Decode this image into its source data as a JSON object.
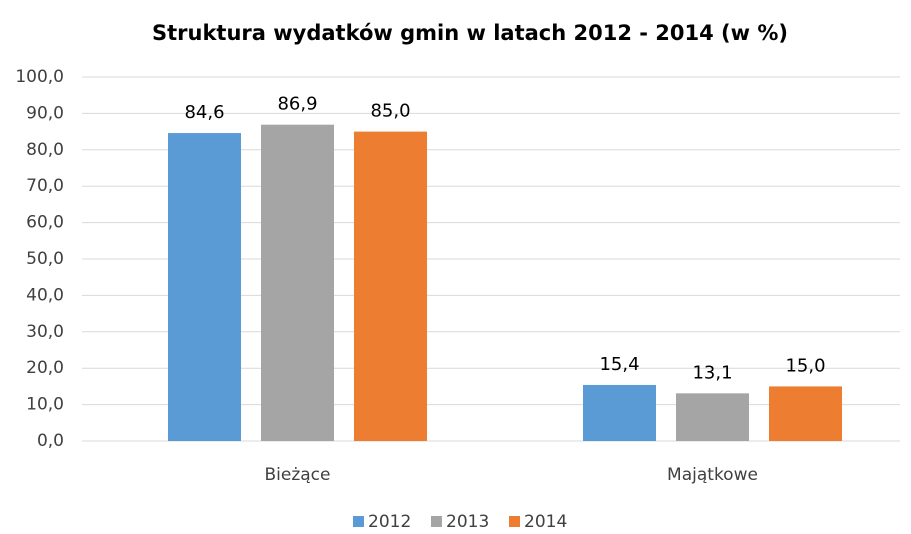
{
  "chart_data": {
    "type": "bar",
    "title": "Struktura wydatków gmin w latach 2012 - 2014 (w %)",
    "categories": [
      "Bieżące",
      "Majątkowe"
    ],
    "series": [
      {
        "name": "2012",
        "color": "#5b9bd5",
        "values": [
          84.6,
          15.4
        ],
        "value_labels": [
          "84,6",
          "15,4"
        ]
      },
      {
        "name": "2013",
        "color": "#a5a5a5",
        "values": [
          86.9,
          13.1
        ],
        "value_labels": [
          "86,9",
          "13,1"
        ]
      },
      {
        "name": "2014",
        "color": "#ed7d31",
        "values": [
          85.0,
          15.0
        ],
        "value_labels": [
          "85,0",
          "15,0"
        ]
      }
    ],
    "ylim": [
      0,
      100
    ],
    "yticks": [
      {
        "value": 0,
        "label": "0,0"
      },
      {
        "value": 10,
        "label": "10,0"
      },
      {
        "value": 20,
        "label": "20,0"
      },
      {
        "value": 30,
        "label": "30,0"
      },
      {
        "value": 40,
        "label": "40,0"
      },
      {
        "value": 50,
        "label": "50,0"
      },
      {
        "value": 60,
        "label": "60,0"
      },
      {
        "value": 70,
        "label": "70,0"
      },
      {
        "value": 80,
        "label": "80,0"
      },
      {
        "value": 90,
        "label": "90,0"
      },
      {
        "value": 100,
        "label": "100,0"
      }
    ],
    "grid": true,
    "legend": "bottom"
  }
}
